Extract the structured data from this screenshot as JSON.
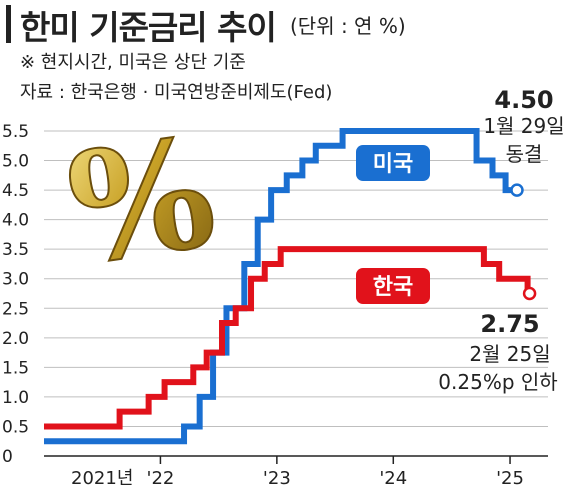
{
  "header": {
    "title": "한미 기준금리 추이",
    "unit": "(단위 : 연 %)",
    "note": "※ 현지시간, 미국은 상단 기준",
    "source": "자료 : 한국은행 · 미국연방준비제도(Fed)"
  },
  "colors": {
    "us": "#1a6fd1",
    "kr": "#e1121b",
    "grid": "#bfbfbf",
    "gold": "#c9a227"
  },
  "icons": {
    "decoration": "gold-percent-icon"
  },
  "chart_data": {
    "type": "line",
    "step": true,
    "title": "한미 기준금리 추이",
    "ylim": [
      0,
      5.5
    ],
    "yticks": [
      "0",
      "0.5",
      "1.0",
      "1.5",
      "2.0",
      "2.5",
      "3.0",
      "3.5",
      "4.0",
      "4.5",
      "5.0",
      "5.5"
    ],
    "xticks": [
      "2021년",
      "'22",
      "'23",
      "'24",
      "'25"
    ],
    "grid": true,
    "x_start": "2021-01-01",
    "series": [
      {
        "name": "미국",
        "x": [
          "2021-01-01",
          "2022-03-16",
          "2022-05-04",
          "2022-06-15",
          "2022-07-27",
          "2022-09-21",
          "2022-11-02",
          "2022-12-14",
          "2023-02-01",
          "2023-03-22",
          "2023-05-03",
          "2023-07-26",
          "2024-09-18",
          "2024-11-07",
          "2024-12-18",
          "2025-01-29"
        ],
        "y": [
          0.25,
          0.5,
          1.0,
          1.75,
          2.5,
          3.25,
          4.0,
          4.5,
          4.75,
          5.0,
          5.25,
          5.5,
          5.0,
          4.75,
          4.5,
          4.5
        ]
      },
      {
        "name": "한국",
        "x": [
          "2021-01-01",
          "2021-08-26",
          "2021-11-25",
          "2022-01-14",
          "2022-04-14",
          "2022-05-26",
          "2022-07-13",
          "2022-08-25",
          "2022-10-12",
          "2022-11-24",
          "2023-01-13",
          "2024-10-11",
          "2024-11-28",
          "2025-02-25"
        ],
        "y": [
          0.5,
          0.75,
          1.0,
          1.25,
          1.5,
          1.75,
          2.25,
          2.5,
          3.0,
          3.25,
          3.5,
          3.25,
          3.0,
          2.75
        ]
      }
    ],
    "annotations": [
      {
        "series": "미국",
        "value": "4.50",
        "lines": [
          "1월 29일",
          "동결"
        ]
      },
      {
        "series": "한국",
        "value": "2.75",
        "lines": [
          "2월 25일",
          "0.25%p 인하"
        ]
      }
    ]
  }
}
